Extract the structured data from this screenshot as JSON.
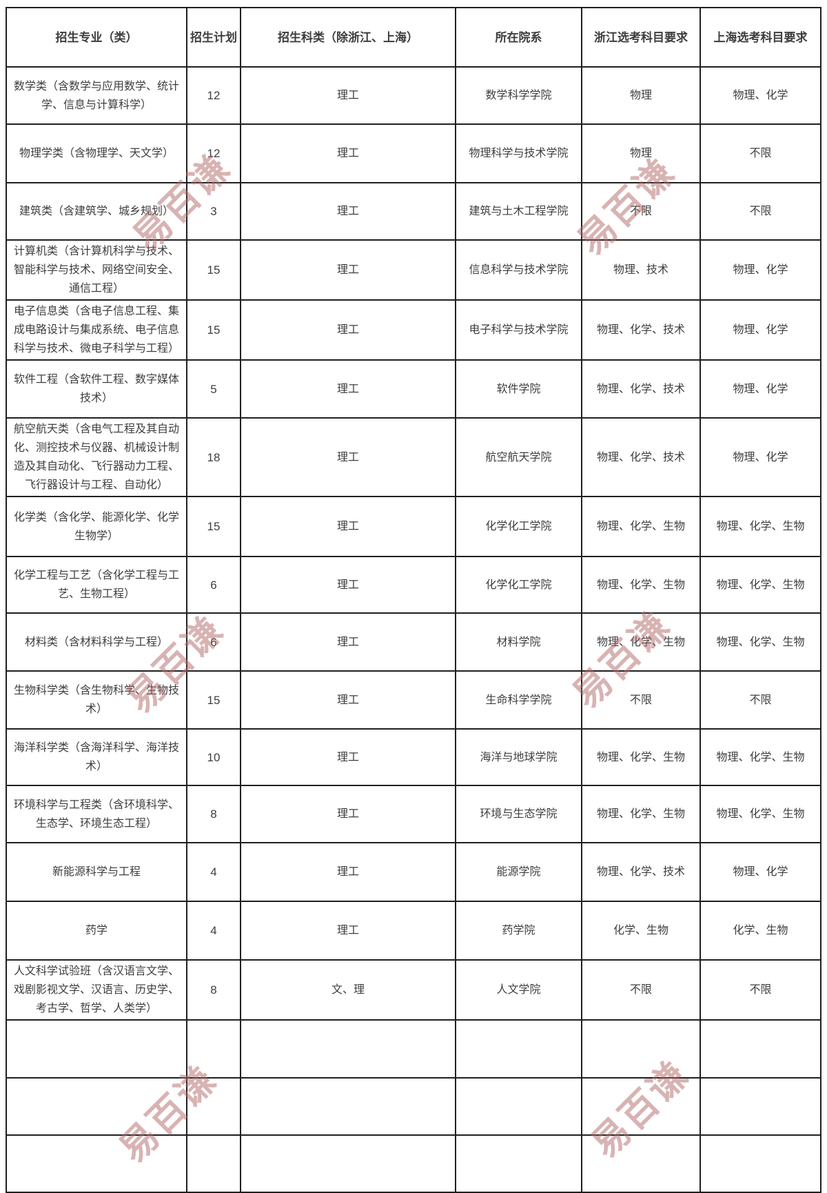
{
  "page": {
    "background": "#ffffff",
    "text_color": "#3d3d3d",
    "border_color": "#1f1f1f"
  },
  "table": {
    "headers": [
      "招生专业（类）",
      "招生计划",
      "招生科类（除浙江、上海）",
      "所在院系",
      "浙江选考科目要求",
      "上海选考科目要求"
    ],
    "rows": [
      [
        "数学类（含数学与应用数学、统计学、信息与计算科学）",
        "12",
        "理工",
        "数学科学学院",
        "物理",
        "物理、化学"
      ],
      [
        "物理学类（含物理学、天文学）",
        "12",
        "理工",
        "物理科学与技术学院",
        "物理",
        "不限"
      ],
      [
        "建筑类（含建筑学、城乡规划）",
        "3",
        "理工",
        "建筑与土木工程学院",
        "不限",
        "不限"
      ],
      [
        "计算机类（含计算机科学与技术、智能科学与技术、网络空间安全、通信工程）",
        "15",
        "理工",
        "信息科学与技术学院",
        "物理、技术",
        "物理、化学"
      ],
      [
        "电子信息类（含电子信息工程、集成电路设计与集成系统、电子信息科学与技术、微电子科学与工程）",
        "15",
        "理工",
        "电子科学与技术学院",
        "物理、化学、技术",
        "物理、化学"
      ],
      [
        "软件工程（含软件工程、数字媒体技术）",
        "5",
        "理工",
        "软件学院",
        "物理、化学、技术",
        "物理、化学"
      ],
      [
        "航空航天类（含电气工程及其自动化、测控技术与仪器、机械设计制造及其自动化、飞行器动力工程、飞行器设计与工程、自动化）",
        "18",
        "理工",
        "航空航天学院",
        "物理、化学、技术",
        "物理、化学"
      ],
      [
        "化学类（含化学、能源化学、化学生物学）",
        "15",
        "理工",
        "化学化工学院",
        "物理、化学、生物",
        "物理、化学、生物"
      ],
      [
        "化学工程与工艺（含化学工程与工艺、生物工程）",
        "6",
        "理工",
        "化学化工学院",
        "物理、化学、生物",
        "物理、化学、生物"
      ],
      [
        "材料类（含材料科学与工程）",
        "6",
        "理工",
        "材料学院",
        "物理、化学、生物",
        "物理、化学、生物"
      ],
      [
        "生物科学类（含生物科学、生物技术）",
        "15",
        "理工",
        "生命科学学院",
        "不限",
        "不限"
      ],
      [
        "海洋科学类（含海洋科学、海洋技术）",
        "10",
        "理工",
        "海洋与地球学院",
        "物理、化学、生物",
        "物理、化学、生物"
      ],
      [
        "环境科学与工程类（含环境科学、生态学、环境生态工程）",
        "8",
        "理工",
        "环境与生态学院",
        "物理、化学、生物",
        "物理、化学、生物"
      ],
      [
        "新能源科学与工程",
        "4",
        "理工",
        "能源学院",
        "物理、化学、技术",
        "物理、化学"
      ],
      [
        "药学",
        "4",
        "理工",
        "药学院",
        "化学、生物",
        "化学、生物"
      ],
      [
        "人文科学试验班（含汉语言文学、戏剧影视文学、汉语言、历史学、考古学、哲学、人类学）",
        "8",
        "文、理",
        "人文学院",
        "不限",
        "不限"
      ],
      [
        "",
        "",
        "",
        "",
        "",
        ""
      ],
      [
        "",
        "",
        "",
        "",
        "",
        ""
      ],
      [
        "",
        "",
        "",
        "",
        "",
        ""
      ]
    ]
  },
  "watermark": {
    "text": "易百谦",
    "color": "#b26a6a"
  }
}
